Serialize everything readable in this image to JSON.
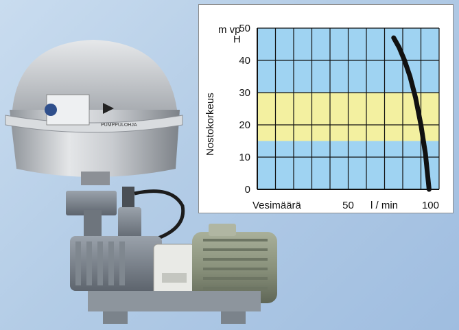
{
  "product": {
    "brand": "PUMPPULOHJA"
  },
  "chart_data": {
    "type": "line",
    "title": "",
    "ylabel": "Nostokorkeus",
    "yunit": "m vp",
    "ysymbol": "H",
    "xlabel": "Vesimäärä",
    "xunit": "l / min",
    "xlim": [
      0,
      100
    ],
    "ylim": [
      0,
      50
    ],
    "yticks": [
      0,
      10,
      20,
      30,
      40,
      50
    ],
    "xtick_labels": [
      {
        "value": 50,
        "label": "50"
      },
      {
        "value": 100,
        "label": "100"
      }
    ],
    "grid": true,
    "band": {
      "y_from": 15,
      "y_to": 30,
      "color": "#f3f0a0"
    },
    "background_color": "#9fd3f2",
    "series": [
      {
        "color": "#111111",
        "x": [
          75,
          78,
          81,
          84,
          87,
          90,
          92.5,
          94.5
        ],
        "y": [
          47,
          44,
          40,
          35,
          28.5,
          20,
          11,
          0
        ]
      }
    ]
  }
}
